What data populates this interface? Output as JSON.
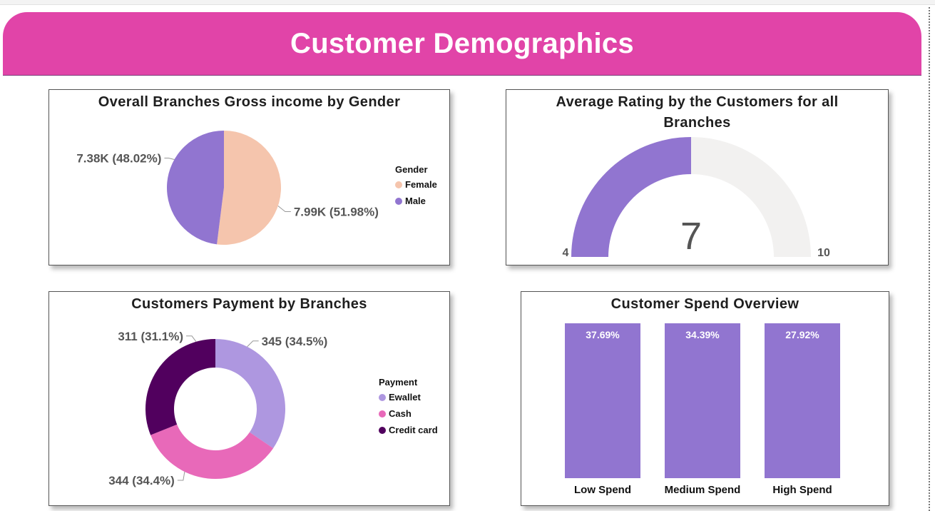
{
  "page_title": "Customer Demographics",
  "colors": {
    "banner": "#e144a8",
    "female": "#f5c5ad",
    "male": "#9175d0",
    "ewallet": "#ae97e0",
    "cash": "#e869b9",
    "credit_card": "#51005e",
    "gauge_fill": "#9175d0",
    "gauge_track": "#f2f1f0",
    "bar": "#9175d0"
  },
  "chart_data": [
    {
      "type": "pie",
      "title": "Overall Branches Gross income by Gender",
      "legend_title": "Gender",
      "legend_position": "right",
      "slices": [
        {
          "name": "Female",
          "value": 7.99,
          "label": "7.99K (51.98%)",
          "color": "#f5c5ad"
        },
        {
          "name": "Male",
          "value": 7.38,
          "label": "7.38K (48.02%)",
          "color": "#9175d0"
        }
      ]
    },
    {
      "type": "gauge",
      "title": "Average Rating by the Customers for all Branches",
      "min": 4,
      "max": 10,
      "value": 7,
      "min_label": "4",
      "max_label": "10",
      "value_label": "7"
    },
    {
      "type": "donut",
      "title": "Customers Payment by Branches",
      "legend_title": "Payment",
      "legend_position": "right",
      "slices": [
        {
          "name": "Ewallet",
          "value": 345,
          "label": "345 (34.5%)",
          "color": "#ae97e0"
        },
        {
          "name": "Cash",
          "value": 344,
          "label": "344 (34.4%)",
          "color": "#e869b9"
        },
        {
          "name": "Credit card",
          "value": 311,
          "label": "311 (31.1%)",
          "color": "#51005e"
        }
      ]
    },
    {
      "type": "bar",
      "title": "Customer Spend Overview",
      "categories": [
        "Low Spend",
        "Medium Spend",
        "High Spend"
      ],
      "values": [
        37.69,
        34.39,
        27.92
      ],
      "value_labels": [
        "37.69%",
        "34.39%",
        "27.92%"
      ]
    }
  ]
}
